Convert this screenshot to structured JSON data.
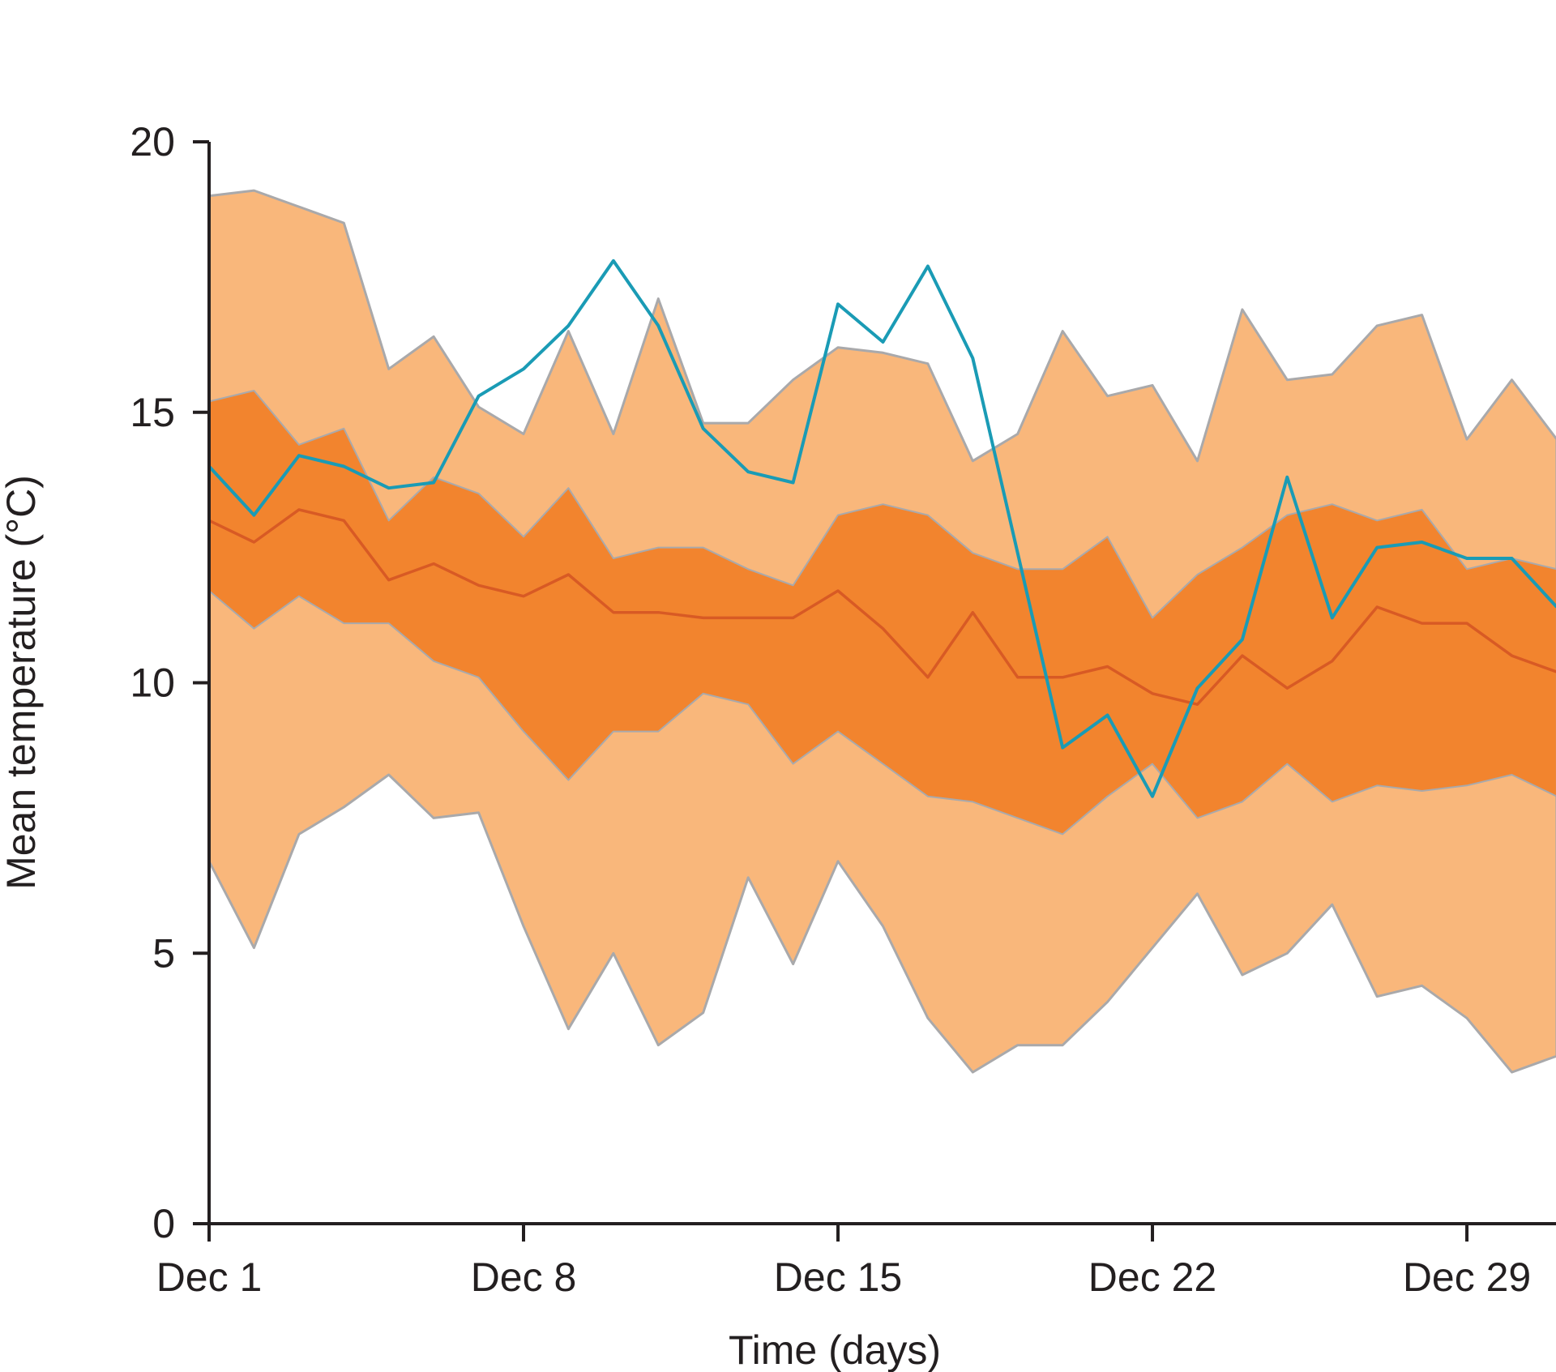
{
  "chart_data": {
    "type": "line",
    "xlabel": "Time (days)",
    "ylabel": "Mean temperature (°C)",
    "ylim": [
      0,
      20
    ],
    "xlim": [
      "Dec 1",
      "Dec 31"
    ],
    "yticks": [
      0,
      5,
      10,
      15,
      20
    ],
    "xticks": [
      "Dec 1",
      "Dec 8",
      "Dec 15",
      "Dec 22",
      "Dec 29"
    ],
    "grid": false,
    "colors": {
      "outer_band": "#f9b77b",
      "inner_band": "#f2842e",
      "band_edge": "#a9a9ab",
      "median_line": "#d85a24",
      "observed_line": "#1a9bb5",
      "axis": "#231f20"
    },
    "x": [
      "Dec 1",
      "Dec 2",
      "Dec 3",
      "Dec 4",
      "Dec 5",
      "Dec 6",
      "Dec 7",
      "Dec 8",
      "Dec 9",
      "Dec 10",
      "Dec 11",
      "Dec 12",
      "Dec 13",
      "Dec 14",
      "Dec 15",
      "Dec 16",
      "Dec 17",
      "Dec 18",
      "Dec 19",
      "Dec 20",
      "Dec 21",
      "Dec 22",
      "Dec 23",
      "Dec 24",
      "Dec 25",
      "Dec 26",
      "Dec 27",
      "Dec 28",
      "Dec 29",
      "Dec 30",
      "Dec 31"
    ],
    "series": [
      {
        "role": "outer_band_upper",
        "values": [
          19.0,
          19.1,
          18.8,
          18.5,
          15.8,
          16.4,
          15.1,
          14.6,
          16.5,
          14.6,
          17.1,
          14.8,
          14.8,
          15.6,
          16.2,
          16.1,
          15.9,
          14.1,
          14.6,
          16.5,
          15.3,
          15.5,
          14.1,
          16.9,
          15.6,
          15.7,
          16.6,
          16.8,
          14.5,
          15.6,
          14.5
        ]
      },
      {
        "role": "inner_band_upper",
        "values": [
          15.2,
          15.4,
          14.4,
          14.7,
          13.0,
          13.8,
          13.5,
          12.7,
          13.6,
          12.3,
          12.5,
          12.5,
          12.1,
          11.8,
          13.1,
          13.3,
          13.1,
          12.4,
          12.1,
          12.1,
          12.7,
          11.2,
          12.0,
          12.5,
          13.1,
          13.3,
          13.0,
          13.2,
          12.1,
          12.3,
          12.1
        ]
      },
      {
        "role": "median",
        "values": [
          13.0,
          12.6,
          13.2,
          13.0,
          11.9,
          12.2,
          11.8,
          11.6,
          12.0,
          11.3,
          11.3,
          11.2,
          11.2,
          11.2,
          11.7,
          11.0,
          10.1,
          11.3,
          10.1,
          10.1,
          10.3,
          9.8,
          9.6,
          10.5,
          9.9,
          10.4,
          11.4,
          11.1,
          11.1,
          10.5,
          10.2
        ]
      },
      {
        "role": "inner_band_lower",
        "values": [
          11.7,
          11.0,
          11.6,
          11.1,
          11.1,
          10.4,
          10.1,
          9.1,
          8.2,
          9.1,
          9.1,
          9.8,
          9.6,
          8.5,
          9.1,
          8.5,
          7.9,
          7.8,
          7.5,
          7.2,
          7.9,
          8.5,
          7.5,
          7.8,
          8.5,
          7.8,
          8.1,
          8.0,
          8.1,
          8.3,
          7.9
        ]
      },
      {
        "role": "outer_band_lower",
        "values": [
          6.7,
          5.1,
          7.2,
          7.7,
          8.3,
          7.5,
          7.6,
          5.5,
          3.6,
          5.0,
          3.3,
          3.9,
          6.4,
          4.8,
          6.7,
          5.5,
          3.8,
          2.8,
          3.3,
          3.3,
          4.1,
          5.1,
          6.1,
          4.6,
          5.0,
          5.9,
          4.2,
          4.4,
          3.8,
          2.8,
          3.1
        ]
      },
      {
        "role": "observed",
        "values": [
          14.0,
          13.1,
          14.2,
          14.0,
          13.6,
          13.7,
          15.3,
          15.8,
          16.6,
          17.8,
          16.6,
          14.7,
          13.9,
          13.7,
          17.0,
          16.3,
          17.7,
          16.0,
          12.4,
          8.8,
          9.4,
          7.9,
          9.9,
          10.8,
          13.8,
          11.2,
          12.5,
          12.6,
          12.3,
          12.3,
          11.4
        ]
      }
    ]
  }
}
